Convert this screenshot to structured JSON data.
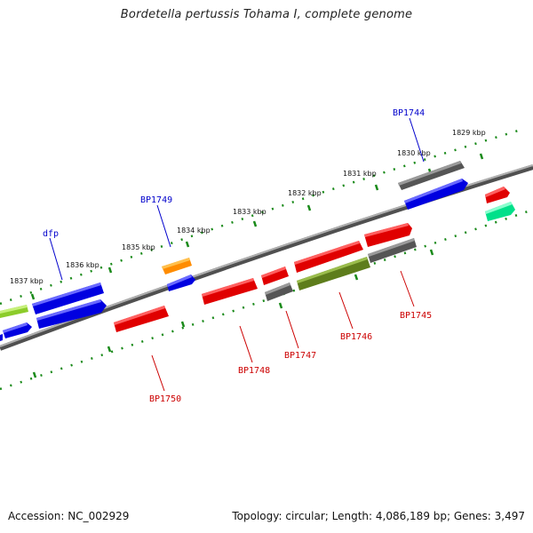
{
  "title": "Bordetella pertussis Tohama I, complete genome",
  "footer": {
    "accession": "Accession: NC_002929",
    "summary": "Topology: circular; Length: 4,086,189 bp; Genes: 3,497"
  },
  "colors": {
    "backbone": "#808080",
    "tick": "#1a8a1a",
    "forward_label": "#0000cc",
    "reverse_label": "#cc0000",
    "red": "#ff0000",
    "blue": "#0000ff",
    "gray": "#606060",
    "olive": "#6b8e23",
    "orange": "#ff9900",
    "lime": "#99dd33",
    "teal": "#00ff99"
  },
  "kbp_labels": [
    "1829 kbp",
    "1830 kbp",
    "1831 kbp",
    "1832 kbp",
    "1833 kbp",
    "1834 kbp",
    "1835 kbp",
    "1836 kbp",
    "1837 kbp"
  ],
  "gene_labels": {
    "bp1744": "BP1744",
    "bp1749": "BP1749",
    "dfp": "dfp",
    "bp1745": "BP1745",
    "bp1746": "BP1746",
    "bp1747": "BP1747",
    "bp1748": "BP1748",
    "bp1750": "BP1750"
  }
}
